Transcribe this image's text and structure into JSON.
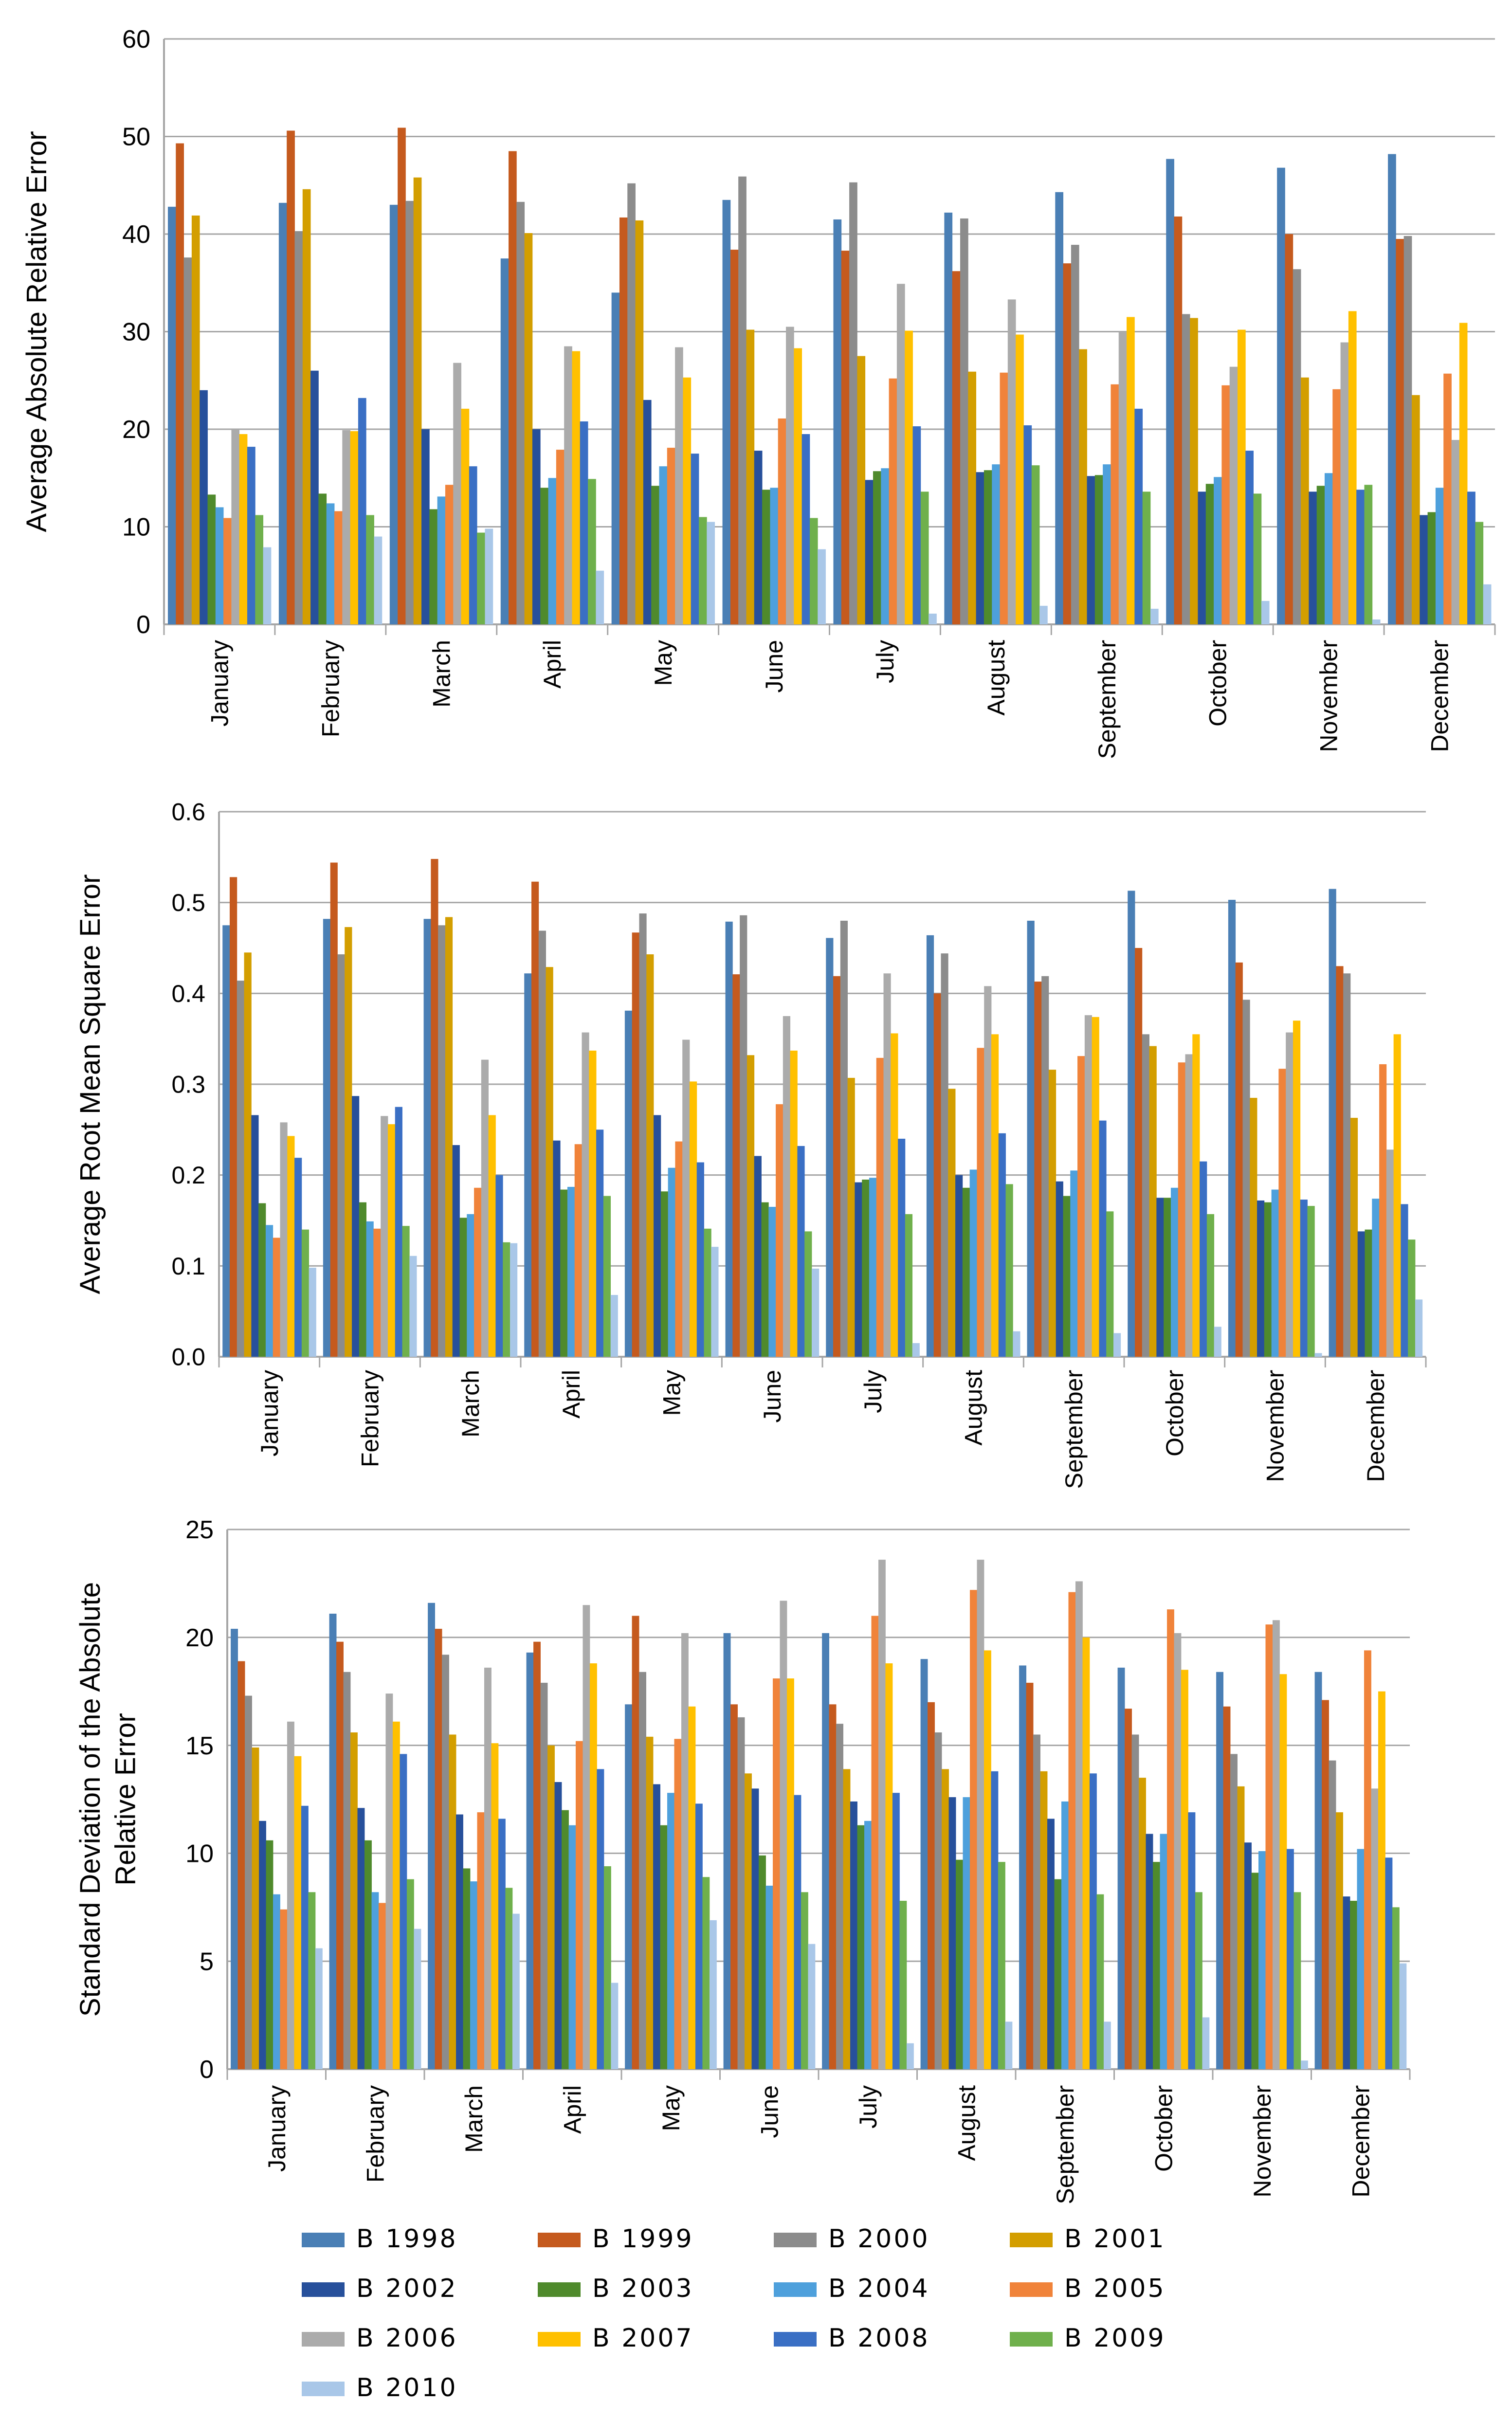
{
  "chart_data": [
    {
      "type": "bar",
      "title": "",
      "xlabel": "",
      "ylabel": "Average Absolute Relative Error",
      "ylim": [
        0,
        60
      ],
      "yticks": [
        "0",
        "10",
        "20",
        "30",
        "40",
        "50",
        "60"
      ],
      "categories": [
        "January",
        "February",
        "March",
        "April",
        "May",
        "June",
        "July",
        "August",
        "September",
        "October",
        "November",
        "December"
      ],
      "series": [
        {
          "name": "B 1998",
          "values": [
            42.8,
            43.2,
            43.0,
            37.5,
            34.0,
            43.5,
            41.5,
            42.2,
            44.3,
            47.7,
            46.8,
            48.2
          ]
        },
        {
          "name": "B 1999",
          "values": [
            49.3,
            50.6,
            50.9,
            48.5,
            41.7,
            38.4,
            38.3,
            36.2,
            37.0,
            41.8,
            40.0,
            39.5
          ]
        },
        {
          "name": "B 2000",
          "values": [
            37.6,
            40.3,
            43.4,
            43.3,
            45.2,
            45.9,
            45.3,
            41.6,
            38.9,
            31.8,
            36.4,
            39.8
          ]
        },
        {
          "name": "B 2001",
          "values": [
            41.9,
            44.6,
            45.8,
            40.1,
            41.4,
            30.2,
            27.5,
            25.9,
            28.2,
            31.4,
            25.3,
            23.5
          ]
        },
        {
          "name": "B 2002",
          "values": [
            24.0,
            26.0,
            20.0,
            20.0,
            23.0,
            17.8,
            14.8,
            15.6,
            15.2,
            13.6,
            13.6,
            11.2
          ]
        },
        {
          "name": "B 2003",
          "values": [
            13.3,
            13.4,
            11.8,
            14.0,
            14.2,
            13.8,
            15.7,
            15.8,
            15.3,
            14.4,
            14.2,
            11.5
          ]
        },
        {
          "name": "B 2004",
          "values": [
            12.0,
            12.4,
            13.1,
            15.0,
            16.2,
            14.0,
            16.0,
            16.4,
            16.4,
            15.1,
            15.5,
            14.0
          ]
        },
        {
          "name": "B 2005",
          "values": [
            10.9,
            11.6,
            14.3,
            17.9,
            18.1,
            21.1,
            25.2,
            25.8,
            24.6,
            24.5,
            24.1,
            25.7
          ]
        },
        {
          "name": "B 2006",
          "values": [
            20.0,
            19.9,
            26.8,
            28.5,
            28.4,
            30.5,
            34.9,
            33.3,
            30.0,
            26.4,
            28.9,
            18.9
          ]
        },
        {
          "name": "B 2007",
          "values": [
            19.5,
            19.8,
            22.1,
            28.0,
            25.3,
            28.3,
            30.1,
            29.7,
            31.5,
            30.2,
            32.1,
            30.9
          ]
        },
        {
          "name": "B 2008",
          "values": [
            18.2,
            23.2,
            16.2,
            20.8,
            17.5,
            19.5,
            20.3,
            20.4,
            22.1,
            17.8,
            13.8,
            13.6
          ]
        },
        {
          "name": "B 2009",
          "values": [
            11.2,
            11.2,
            9.4,
            14.9,
            11.0,
            10.9,
            13.6,
            16.3,
            13.6,
            13.4,
            14.3,
            10.5
          ]
        },
        {
          "name": "B 2010",
          "values": [
            7.9,
            9.0,
            9.8,
            5.5,
            10.5,
            7.7,
            1.1,
            1.9,
            1.6,
            2.4,
            0.5,
            4.1
          ]
        }
      ]
    },
    {
      "type": "bar",
      "title": "",
      "xlabel": "",
      "ylabel": "Average Root Mean Square Error",
      "ylim": [
        0,
        0.6
      ],
      "yticks": [
        "0.0",
        "0.1",
        "0.2",
        "0.3",
        "0.4",
        "0.5",
        "0.6"
      ],
      "categories": [
        "January",
        "February",
        "March",
        "April",
        "May",
        "June",
        "July",
        "August",
        "September",
        "October",
        "November",
        "December"
      ],
      "series": [
        {
          "name": "B 1998",
          "values": [
            0.475,
            0.482,
            0.482,
            0.422,
            0.381,
            0.479,
            0.461,
            0.464,
            0.48,
            0.513,
            0.503,
            0.515
          ]
        },
        {
          "name": "B 1999",
          "values": [
            0.528,
            0.544,
            0.548,
            0.523,
            0.467,
            0.421,
            0.419,
            0.4,
            0.413,
            0.45,
            0.434,
            0.43
          ]
        },
        {
          "name": "B 2000",
          "values": [
            0.414,
            0.443,
            0.475,
            0.469,
            0.488,
            0.486,
            0.48,
            0.444,
            0.419,
            0.355,
            0.393,
            0.422
          ]
        },
        {
          "name": "B 2001",
          "values": [
            0.445,
            0.473,
            0.484,
            0.429,
            0.443,
            0.332,
            0.307,
            0.295,
            0.316,
            0.342,
            0.285,
            0.263
          ]
        },
        {
          "name": "B 2002",
          "values": [
            0.266,
            0.287,
            0.233,
            0.238,
            0.266,
            0.221,
            0.192,
            0.2,
            0.193,
            0.175,
            0.172,
            0.138
          ]
        },
        {
          "name": "B 2003",
          "values": [
            0.169,
            0.17,
            0.153,
            0.184,
            0.182,
            0.17,
            0.195,
            0.186,
            0.177,
            0.175,
            0.17,
            0.14
          ]
        },
        {
          "name": "B 2004",
          "values": [
            0.145,
            0.149,
            0.157,
            0.187,
            0.208,
            0.165,
            0.197,
            0.206,
            0.205,
            0.186,
            0.184,
            0.174
          ]
        },
        {
          "name": "B 2005",
          "values": [
            0.131,
            0.141,
            0.186,
            0.234,
            0.237,
            0.278,
            0.329,
            0.34,
            0.331,
            0.324,
            0.317,
            0.322
          ]
        },
        {
          "name": "B 2006",
          "values": [
            0.258,
            0.265,
            0.327,
            0.357,
            0.349,
            0.375,
            0.422,
            0.408,
            0.376,
            0.333,
            0.357,
            0.228
          ]
        },
        {
          "name": "B 2007",
          "values": [
            0.243,
            0.256,
            0.266,
            0.337,
            0.303,
            0.337,
            0.356,
            0.355,
            0.374,
            0.355,
            0.37,
            0.355
          ]
        },
        {
          "name": "B 2008",
          "values": [
            0.219,
            0.275,
            0.2,
            0.25,
            0.214,
            0.232,
            0.24,
            0.246,
            0.26,
            0.215,
            0.173,
            0.168
          ]
        },
        {
          "name": "B 2009",
          "values": [
            0.14,
            0.144,
            0.126,
            0.177,
            0.141,
            0.138,
            0.157,
            0.19,
            0.16,
            0.157,
            0.166,
            0.129
          ]
        },
        {
          "name": "B 2010",
          "values": [
            0.098,
            0.111,
            0.125,
            0.068,
            0.121,
            0.097,
            0.015,
            0.028,
            0.026,
            0.033,
            0.004,
            0.063
          ]
        }
      ]
    },
    {
      "type": "bar",
      "title": "",
      "xlabel": "",
      "ylabel": [
        "Standard Deviation of the Absolute",
        "Relative Error"
      ],
      "ylim": [
        0,
        25
      ],
      "yticks": [
        "0",
        "5",
        "10",
        "15",
        "20",
        "25"
      ],
      "categories": [
        "January",
        "February",
        "March",
        "April",
        "May",
        "June",
        "July",
        "August",
        "September",
        "October",
        "November",
        "December"
      ],
      "series": [
        {
          "name": "B 1998",
          "values": [
            20.4,
            21.1,
            21.6,
            19.3,
            16.9,
            20.2,
            20.2,
            19.0,
            18.7,
            18.6,
            18.4,
            18.4
          ]
        },
        {
          "name": "B 1999",
          "values": [
            18.9,
            19.8,
            20.4,
            19.8,
            21.0,
            16.9,
            16.9,
            17.0,
            17.9,
            16.7,
            16.8,
            17.1
          ]
        },
        {
          "name": "B 2000",
          "values": [
            17.3,
            18.4,
            19.2,
            17.9,
            18.4,
            16.3,
            16.0,
            15.6,
            15.5,
            15.5,
            14.6,
            14.3
          ]
        },
        {
          "name": "B 2001",
          "values": [
            14.9,
            15.6,
            15.5,
            15.0,
            15.4,
            13.7,
            13.9,
            13.9,
            13.8,
            13.5,
            13.1,
            11.9
          ]
        },
        {
          "name": "B 2002",
          "values": [
            11.5,
            12.1,
            11.8,
            13.3,
            13.2,
            13.0,
            12.4,
            12.6,
            11.6,
            10.9,
            10.5,
            8.0
          ]
        },
        {
          "name": "B 2003",
          "values": [
            10.6,
            10.6,
            9.3,
            12.0,
            11.3,
            9.9,
            11.3,
            9.7,
            8.8,
            9.6,
            9.1,
            7.8
          ]
        },
        {
          "name": "B 2004",
          "values": [
            8.1,
            8.2,
            8.7,
            11.3,
            12.8,
            8.5,
            11.5,
            12.6,
            12.4,
            10.9,
            10.1,
            10.2
          ]
        },
        {
          "name": "B 2005",
          "values": [
            7.4,
            7.7,
            11.9,
            15.2,
            15.3,
            18.1,
            21.0,
            22.2,
            22.1,
            21.3,
            20.6,
            19.4
          ]
        },
        {
          "name": "B 2006",
          "values": [
            16.1,
            17.4,
            18.6,
            21.5,
            20.2,
            21.7,
            23.6,
            23.6,
            22.6,
            20.2,
            20.8,
            13.0
          ]
        },
        {
          "name": "B 2007",
          "values": [
            14.5,
            16.1,
            15.1,
            18.8,
            16.8,
            18.1,
            18.8,
            19.4,
            20.0,
            18.5,
            18.3,
            17.5
          ]
        },
        {
          "name": "B 2008",
          "values": [
            12.2,
            14.6,
            11.6,
            13.9,
            12.3,
            12.7,
            12.8,
            13.8,
            13.7,
            11.9,
            10.2,
            9.8
          ]
        },
        {
          "name": "B 2009",
          "values": [
            8.2,
            8.8,
            8.4,
            9.4,
            8.9,
            8.2,
            7.8,
            9.6,
            8.1,
            8.2,
            8.2,
            7.5
          ]
        },
        {
          "name": "B 2010",
          "values": [
            5.6,
            6.5,
            7.2,
            4.0,
            6.9,
            5.8,
            1.2,
            2.2,
            2.2,
            2.4,
            0.4,
            4.9
          ]
        }
      ]
    }
  ],
  "legend": {
    "placement": "bottom",
    "entries": [
      {
        "label": "B 1998",
        "color": "#4a7fb5"
      },
      {
        "label": "B 1999",
        "color": "#c55a1e"
      },
      {
        "label": "B 2000",
        "color": "#8c8c8c"
      },
      {
        "label": "B 2001",
        "color": "#d39e00"
      },
      {
        "label": "B 2002",
        "color": "#27509b"
      },
      {
        "label": "B 2003",
        "color": "#4f8a2c"
      },
      {
        "label": "B 2004",
        "color": "#4ea0dc"
      },
      {
        "label": "B 2005",
        "color": "#f0833a"
      },
      {
        "label": "B 2006",
        "color": "#ababab"
      },
      {
        "label": "B 2007",
        "color": "#ffc000"
      },
      {
        "label": "B 2008",
        "color": "#3a6fc4"
      },
      {
        "label": "B 2009",
        "color": "#6fb04c"
      },
      {
        "label": "B 2010",
        "color": "#a9c7e8"
      }
    ]
  }
}
